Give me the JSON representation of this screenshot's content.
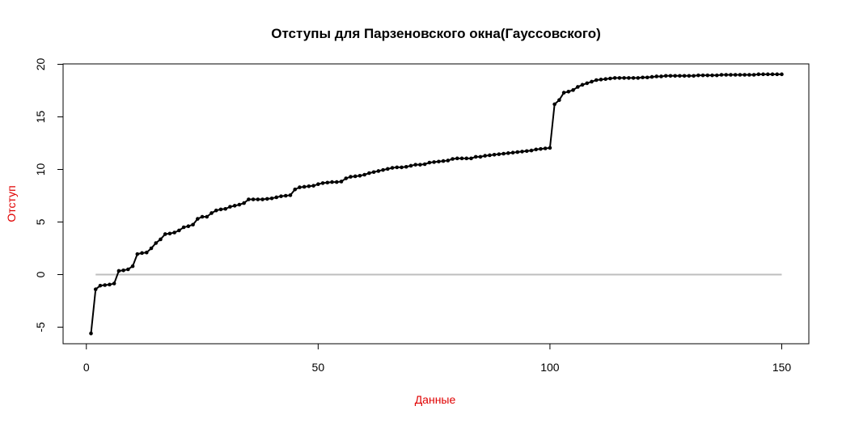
{
  "chart_data": {
    "type": "line",
    "title": "Отступы для Парзеновского окна(Гауссовского)",
    "xlabel": "Данные",
    "ylabel": "Отступ",
    "xlim": [
      1,
      150
    ],
    "ylim": [
      -5.5,
      19.5
    ],
    "x_ticks": [
      0,
      50,
      100,
      150
    ],
    "y_ticks": [
      -5,
      0,
      5,
      10,
      15,
      20
    ],
    "colors": {
      "series": "#000000",
      "reference_line": "#bebebe",
      "axis_titles": "#e00000"
    },
    "reference_line": {
      "y": 0,
      "x": [
        2,
        150
      ]
    },
    "grid": false,
    "legend": "none",
    "series": [
      {
        "values": [
          -5.6,
          -1.4,
          -1.05,
          -1.0,
          -0.95,
          -0.85,
          0.35,
          0.4,
          0.5,
          0.8,
          1.95,
          2.05,
          2.1,
          2.5,
          3.0,
          3.35,
          3.85,
          3.9,
          4.0,
          4.2,
          4.5,
          4.6,
          4.75,
          5.3,
          5.5,
          5.5,
          5.85,
          6.1,
          6.2,
          6.25,
          6.45,
          6.55,
          6.65,
          6.8,
          7.15,
          7.15,
          7.15,
          7.15,
          7.2,
          7.25,
          7.35,
          7.45,
          7.5,
          7.55,
          8.1,
          8.3,
          8.35,
          8.4,
          8.45,
          8.6,
          8.7,
          8.75,
          8.8,
          8.8,
          8.85,
          9.15,
          9.3,
          9.35,
          9.4,
          9.5,
          9.65,
          9.75,
          9.85,
          9.95,
          10.05,
          10.15,
          10.2,
          10.2,
          10.25,
          10.35,
          10.45,
          10.45,
          10.5,
          10.65,
          10.7,
          10.75,
          10.8,
          10.85,
          11.0,
          11.05,
          11.05,
          11.05,
          11.05,
          11.2,
          11.2,
          11.3,
          11.35,
          11.4,
          11.45,
          11.5,
          11.55,
          11.6,
          11.65,
          11.7,
          11.75,
          11.8,
          11.9,
          11.95,
          12.0,
          12.05,
          16.2,
          16.6,
          17.3,
          17.4,
          17.55,
          17.85,
          18.05,
          18.2,
          18.35,
          18.5,
          18.55,
          18.6,
          18.65,
          18.7,
          18.7,
          18.7,
          18.7,
          18.7,
          18.7,
          18.75,
          18.75,
          18.8,
          18.85,
          18.85,
          18.9,
          18.9,
          18.9,
          18.9,
          18.9,
          18.9,
          18.9,
          18.95,
          18.95,
          18.95,
          18.95,
          18.95,
          19.0,
          19.0,
          19.0,
          19.0,
          19.0,
          19.0,
          19.0,
          19.0,
          19.05,
          19.05,
          19.05,
          19.05,
          19.05,
          19.05
        ]
      }
    ]
  }
}
